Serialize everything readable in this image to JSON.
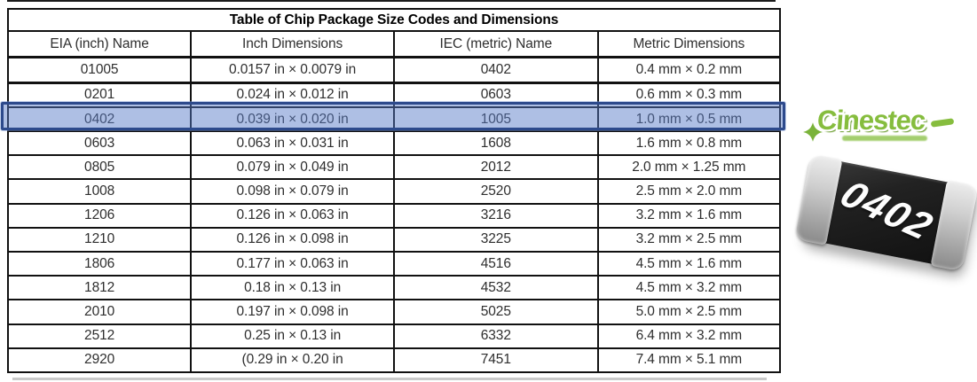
{
  "table": {
    "title": "Table of Chip Package Size Codes and Dimensions",
    "columns": [
      "EIA (inch) Name",
      "Inch Dimensions",
      "IEC (metric) Name",
      "Metric Dimensions"
    ],
    "highlighted_row_eia": "0402",
    "highlight_color": "#2d4a8c",
    "rows": [
      {
        "eia": "01005",
        "inch": "0.0157 in × 0.0079 in",
        "iec": "0402",
        "metric": "0.4 mm × 0.2 mm"
      },
      {
        "eia": "0201",
        "inch": "0.024 in × 0.012 in",
        "iec": "0603",
        "metric": "0.6 mm × 0.3 mm"
      },
      {
        "eia": "0402",
        "inch": "0.039 in × 0.020 in",
        "iec": "1005",
        "metric": "1.0 mm × 0.5 mm"
      },
      {
        "eia": "0603",
        "inch": "0.063 in × 0.031 in",
        "iec": "1608",
        "metric": "1.6 mm × 0.8 mm"
      },
      {
        "eia": "0805",
        "inch": "0.079 in × 0.049 in",
        "iec": "2012",
        "metric": "2.0 mm × 1.25 mm"
      },
      {
        "eia": "1008",
        "inch": "0.098 in × 0.079 in",
        "iec": "2520",
        "metric": "2.5 mm × 2.0 mm"
      },
      {
        "eia": "1206",
        "inch": "0.126 in × 0.063 in",
        "iec": "3216",
        "metric": "3.2 mm × 1.6 mm"
      },
      {
        "eia": "1210",
        "inch": "0.126 in × 0.098 in",
        "iec": "3225",
        "metric": "3.2 mm × 2.5 mm"
      },
      {
        "eia": "1806",
        "inch": "0.177 in × 0.063 in",
        "iec": "4516",
        "metric": "4.5 mm × 1.6 mm"
      },
      {
        "eia": "1812",
        "inch": "0.18 in × 0.13 in",
        "iec": "4532",
        "metric": "4.5 mm × 3.2 mm"
      },
      {
        "eia": "2010",
        "inch": "0.197 in × 0.098 in",
        "iec": "5025",
        "metric": "5.0 mm × 2.5 mm"
      },
      {
        "eia": "2512",
        "inch": "0.25 in × 0.13 in",
        "iec": "6332",
        "metric": "6.4 mm × 3.2 mm"
      },
      {
        "eia": "2920",
        "inch": "(0.29 in × 0.20 in",
        "iec": "7451",
        "metric": "7.4 mm × 5.1 mm"
      }
    ]
  },
  "logo": {
    "text": "Cinestec",
    "color": "#86bd3e"
  },
  "chip": {
    "label": "0402",
    "body_color": "#1c1c1c",
    "terminal_color": "#c0c0c0"
  }
}
